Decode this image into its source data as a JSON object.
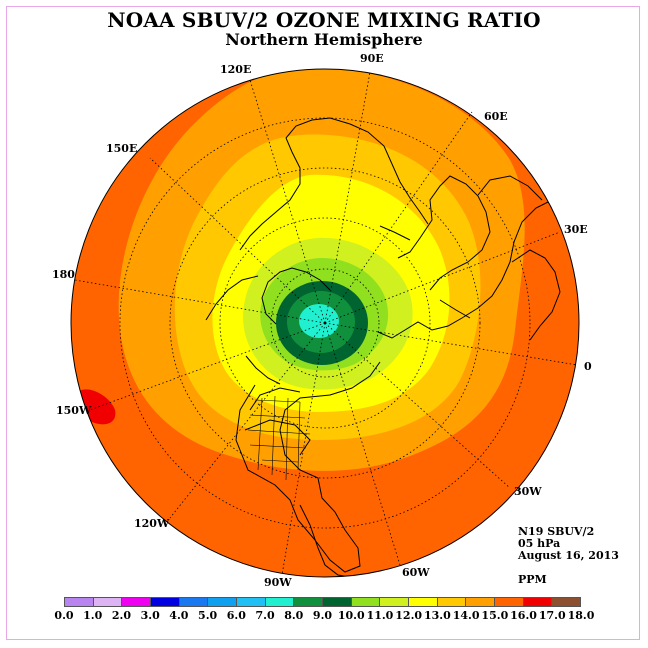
{
  "title": "NOAA SBUV/2 OZONE MIXING RATIO",
  "subtitle": "Northern Hemisphere",
  "info": {
    "instrument": "N19 SBUV/2",
    "level": "05 hPa",
    "date": "August 16, 2013",
    "units": "PPM"
  },
  "longitude_labels": {
    "lon_90e": "90E",
    "lon_120e": "120E",
    "lon_60e": "60E",
    "lon_150e": "150E",
    "lon_30e": "30E",
    "lon_180": "180",
    "lon_0": "0",
    "lon_150w": "150W",
    "lon_30w": "30W",
    "lon_120w": "120W",
    "lon_60w": "60W",
    "lon_90w": "90W"
  },
  "colorbar": {
    "ticks": [
      "0.0",
      "1.0",
      "2.0",
      "3.0",
      "4.0",
      "5.0",
      "6.0",
      "7.0",
      "8.0",
      "9.0",
      "10.0",
      "11.0",
      "12.0",
      "13.0",
      "14.0",
      "15.0",
      "16.0",
      "17.0",
      "18.0"
    ],
    "colors": [
      "#b884f0",
      "#dcb4f4",
      "#f000f0",
      "#0000e0",
      "#1a78f0",
      "#10a0f0",
      "#20c0f4",
      "#20f0d0",
      "#10903c",
      "#006430",
      "#90e020",
      "#d0f020",
      "#ffff00",
      "#ffc800",
      "#ffa000",
      "#ff6400",
      "#f00000",
      "#8c5030"
    ]
  },
  "chart_data": {
    "type": "heatmap",
    "projection": "polar-stereographic-north",
    "variable": "ozone mixing ratio",
    "units": "PPM",
    "level_hPa": 5,
    "date": "August 16, 2013",
    "contour_levels": [
      0,
      1,
      2,
      3,
      4,
      5,
      6,
      7,
      8,
      9,
      10,
      11,
      12,
      13,
      14,
      15,
      16,
      17,
      18
    ],
    "field_summary": [
      {
        "region": "pole",
        "range": [
          7,
          8
        ]
      },
      {
        "region": "~85N",
        "range": [
          9,
          10
        ]
      },
      {
        "region": "~80N",
        "range": [
          8,
          9
        ]
      },
      {
        "region": "~75N",
        "range": [
          10,
          12
        ]
      },
      {
        "region": "~65N",
        "range": [
          12,
          13
        ]
      },
      {
        "region": "~50N",
        "range": [
          13,
          14
        ]
      },
      {
        "region": "~35N",
        "range": [
          14,
          15
        ]
      },
      {
        "region": "~0-25N",
        "range": [
          15,
          16
        ]
      },
      {
        "region": "tropical Pacific near 150W",
        "range": [
          16,
          17
        ]
      }
    ]
  }
}
